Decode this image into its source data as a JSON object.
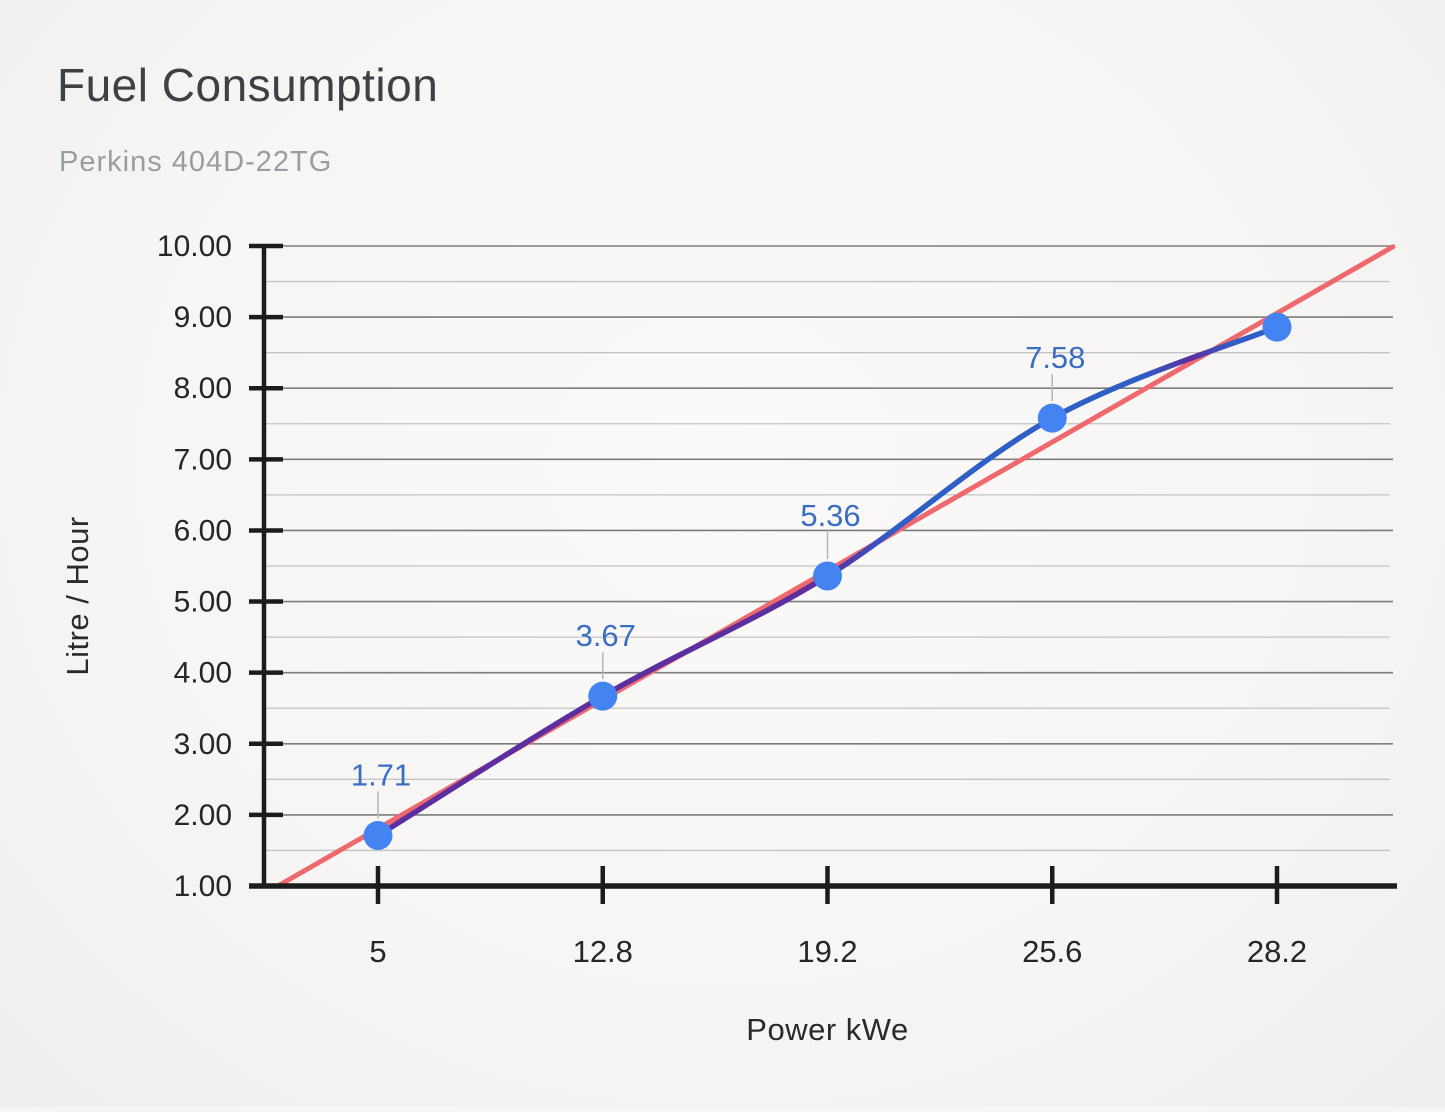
{
  "colors": {
    "background": "#f6f5f3",
    "title": "#3e4043",
    "subtitle": "#9a9da0",
    "axis": "#1c1c1c",
    "grid_major": "#7d7d7d",
    "grid_minor": "#c3c3c3",
    "tick_label": "#262626",
    "leader_line": "#b5b5b5"
  },
  "chart_data": {
    "type": "line",
    "title": "Fuel Consumption",
    "subtitle": "Perkins 404D-22TG",
    "xlabel": "Power kWe",
    "ylabel": "Litre / Hour",
    "categories": [
      "5",
      "12.8",
      "19.2",
      "25.6",
      "28.2"
    ],
    "series": [
      {
        "values": [
          1.71,
          3.67,
          5.36,
          7.58,
          8.86
        ],
        "point_labels": [
          "1.71",
          "3.67",
          "5.36",
          "7.58",
          ""
        ],
        "line_color": "#2e5ec6",
        "overlap_color": "#5c2ea0",
        "point_color": "#4384f2",
        "label_color": "#3a6ec5",
        "smooth": true
      }
    ],
    "trendline": {
      "color": "#ee686e",
      "x1_frac": 0.014,
      "y1": 1.0,
      "x2_frac": 1.0,
      "y2": 9.99
    },
    "ylim": [
      1,
      10
    ],
    "y_major_ticks": [
      "10.00",
      "9.00",
      "8.00",
      "7.00",
      "6.00",
      "5.00",
      "4.00",
      "3.00",
      "2.00",
      "1.00"
    ],
    "y_major_step": 1,
    "y_minor_step": 0.5,
    "grid": "major+minor",
    "legend": "none"
  }
}
